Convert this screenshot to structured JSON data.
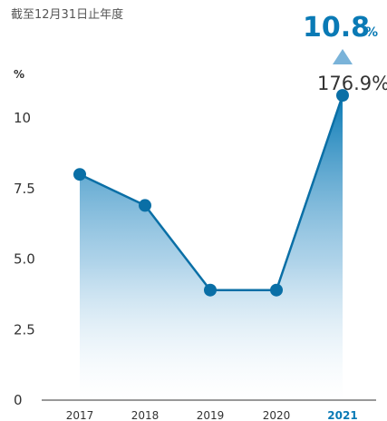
{
  "chart_data": {
    "type": "area",
    "subtitle": "截至12月31日止年度",
    "y_unit": "%",
    "categories": [
      "2017",
      "2018",
      "2019",
      "2020",
      "2021"
    ],
    "highlight_category": "2021",
    "values": [
      8.0,
      6.9,
      3.9,
      3.9,
      10.8
    ],
    "yticks": [
      "0",
      "2.5",
      "5.0",
      "7.5",
      "10"
    ],
    "ylim": [
      0,
      10.8
    ],
    "headline": {
      "value": "10.8",
      "unit": "%",
      "change": "176.9%",
      "direction": "up"
    },
    "colors": {
      "line": "#0a6fa6",
      "marker": "#0a6fa6",
      "fill_top": "#0a7ab5",
      "fill_bottom": "#ffffff",
      "triangle": "#7ab3d9",
      "highlight": "#0a7ab5"
    }
  }
}
